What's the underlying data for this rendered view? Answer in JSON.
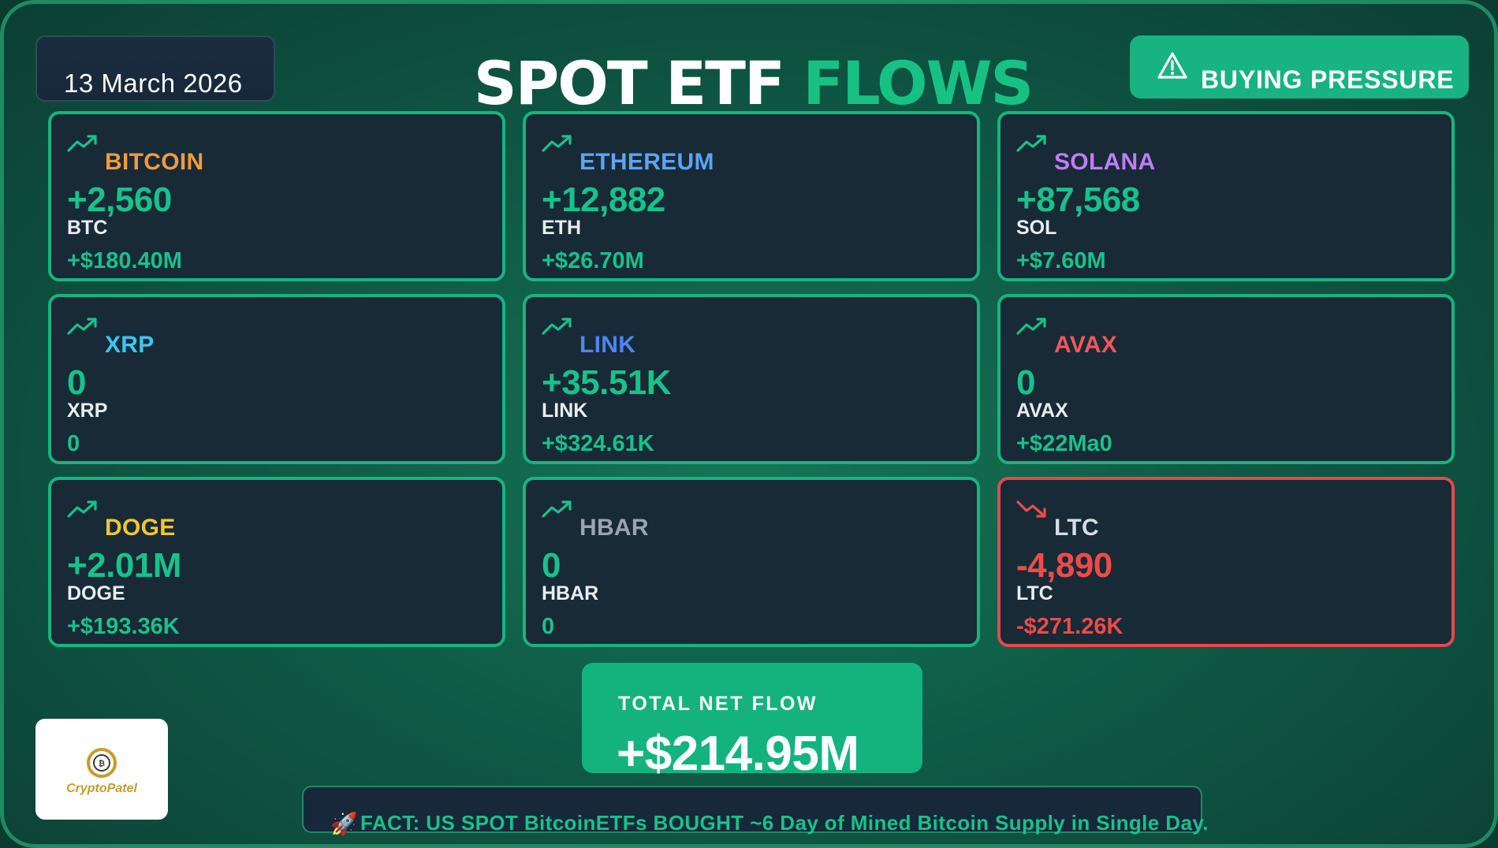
{
  "header": {
    "date": "13 March  2026",
    "title_part1": "SPOT ETF",
    "title_part2": "FLOWS",
    "badge_label": "BUYING PRESSURE",
    "badge_icon": "warning-triangle-icon"
  },
  "colors": {
    "accent_green": "#18c28a",
    "negative_red": "#ef4a4a",
    "card_background": "#172a36"
  },
  "cards": [
    {
      "name": "BITCOIN",
      "name_color": "#f59a3c",
      "amount": "+2,560",
      "ticker": "BTC",
      "usd": "+$180.40M",
      "trend": "up"
    },
    {
      "name": "ETHEREUM",
      "name_color": "#5ea3f5",
      "amount": "+12,882",
      "ticker": "ETH",
      "usd": "+$26.70M",
      "trend": "up"
    },
    {
      "name": "SOLANA",
      "name_color": "#c07cf7",
      "amount": "+87,568",
      "ticker": "SOL",
      "usd": "+$7.60M",
      "trend": "up"
    },
    {
      "name": "XRP",
      "name_color": "#38c8f2",
      "amount": "0",
      "ticker": "XRP",
      "usd": "0",
      "trend": "up"
    },
    {
      "name": "LINK",
      "name_color": "#4f86ef",
      "amount": "+35.51K",
      "ticker": "LINK",
      "usd": "+$324.61K",
      "trend": "up"
    },
    {
      "name": "AVAX",
      "name_color": "#f0575a",
      "amount": "0",
      "ticker": "AVAX",
      "usd": "+$22Ma0",
      "trend": "up"
    },
    {
      "name": "DOGE",
      "name_color": "#f2c631",
      "amount": "+2.01M",
      "ticker": "DOGE",
      "usd": "+$193.36K",
      "trend": "up"
    },
    {
      "name": "HBAR",
      "name_color": "#9aa5b1",
      "amount": "0",
      "ticker": "HBAR",
      "usd": "0",
      "trend": "up"
    },
    {
      "name": "LTC",
      "name_color": "#d9dde3",
      "amount": "-4,890",
      "ticker": "LTC",
      "usd": "-$271.26K",
      "trend": "down"
    }
  ],
  "total": {
    "label": "TOTAL NET FLOW",
    "value": "+$214.95M"
  },
  "logo": {
    "text": "CryptoPatel",
    "icon": "crypto-patel-logo-icon"
  },
  "fact": {
    "icon": "🚀",
    "text": "FACT: US SPOT BitcoinETFs  BOUGHT ~6 Day of Mined Bitcoin Supply in Single Day."
  }
}
